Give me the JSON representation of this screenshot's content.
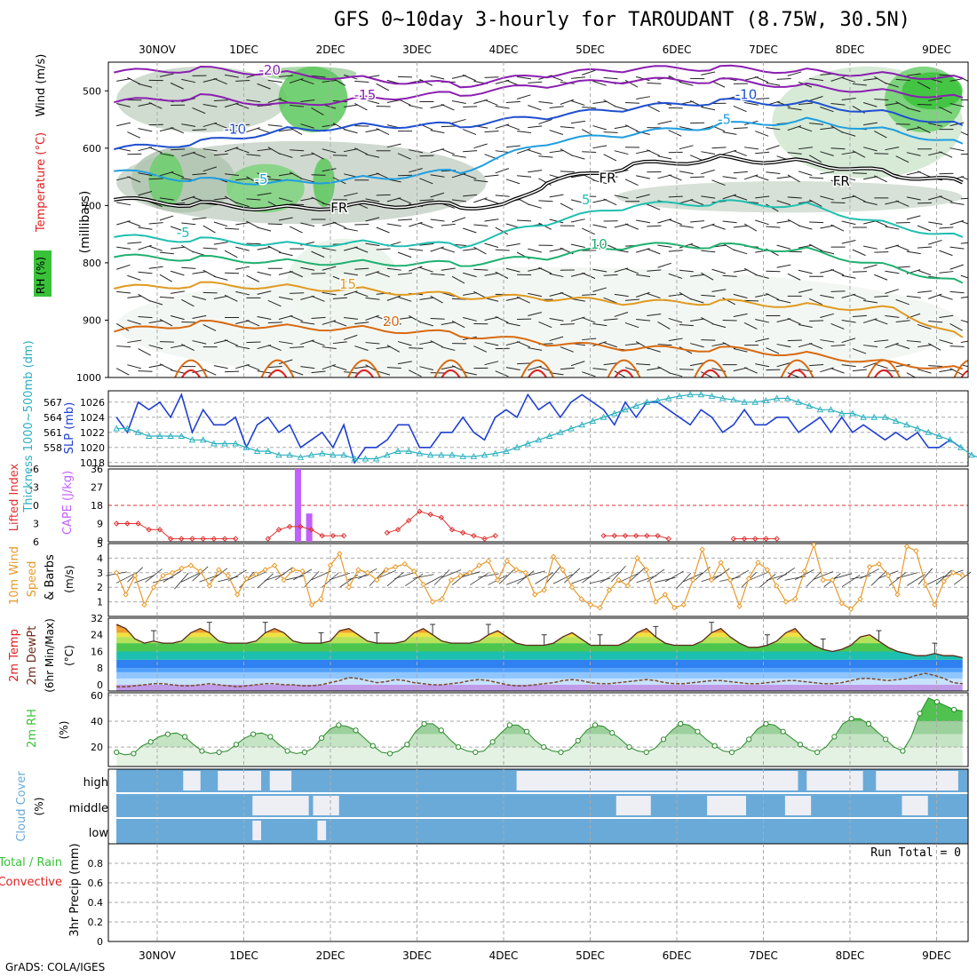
{
  "title": "GFS 0~10day 3-hourly for TAROUDANT (8.75W, 30.5N)",
  "credit": "GrADS: COLA/IGES",
  "dates": [
    "30NOV",
    "1DEC",
    "2DEC",
    "3DEC",
    "4DEC",
    "5DEC",
    "6DEC",
    "7DEC",
    "8DEC",
    "9DEC"
  ],
  "colors": {
    "temp_cold": "#8a1fb0",
    "temp_blue": "#1f4fd0",
    "temp_cyan": "#1f9ee0",
    "temp_teal": "#1fbfb0",
    "temp_green": "#1fb070",
    "temp_orange": "#e09a20",
    "temp_darkorange": "#d86a10",
    "temp_red": "#e02020",
    "rh_green": "#39c239",
    "slp": "#1f3fd0",
    "thickness": "#2ab0c0",
    "lifted": "#e03030",
    "cape": "#c060ff",
    "wind": "#e89a2a",
    "cloud": "#6aaad8",
    "cloud_light": "#eeeef5"
  },
  "chart_data": [
    {
      "panel": "upper-air",
      "type": "contour",
      "ylabel_left": "RH (%)",
      "ylabel_mid": "Temperature (°C)",
      "ylabel_right": "Wind (m/s)",
      "ylabel_units": "(millibars)",
      "yticks": [
        500,
        600,
        700,
        800,
        900,
        1000
      ],
      "ylim": [
        450,
        1000
      ],
      "xlim_days": [
        -0.47,
        9.3
      ],
      "isotherms": [
        {
          "label": "-20",
          "color_key": "temp_cold",
          "days": [
            -0.5,
            0.5,
            1.5,
            2.5,
            3.5,
            4.5,
            5.5,
            6.5,
            7.5,
            8.5,
            9.3
          ],
          "hpa": [
            468,
            462,
            470,
            480,
            490,
            472,
            462,
            460,
            466,
            472,
            478
          ]
        },
        {
          "label": "-15",
          "color_key": "temp_cold",
          "days": [
            -0.5,
            0.5,
            1.5,
            2.5,
            3.5,
            4.5,
            5.5,
            6.5,
            7.5,
            8.5,
            9.3
          ],
          "hpa": [
            520,
            510,
            525,
            512,
            505,
            490,
            482,
            482,
            492,
            502,
            512
          ]
        },
        {
          "label": "-10",
          "color_key": "temp_blue",
          "days": [
            -0.5,
            0.5,
            1.5,
            2.5,
            3.5,
            4.5,
            5.5,
            6.5,
            7.5,
            8.5,
            9.3
          ],
          "hpa": [
            602,
            590,
            568,
            560,
            560,
            545,
            530,
            518,
            522,
            540,
            560
          ]
        },
        {
          "label": "-5",
          "color_key": "temp_cyan",
          "days": [
            -0.5,
            0.5,
            1.5,
            2.5,
            3.5,
            4.5,
            5.5,
            6.5,
            7.5,
            8.5,
            9.3
          ],
          "hpa": [
            640,
            656,
            660,
            652,
            640,
            590,
            575,
            560,
            552,
            570,
            592
          ]
        },
        {
          "label": "FR",
          "color_key": "freezing",
          "days": [
            -0.5,
            0.5,
            1.5,
            2.5,
            3.5,
            4.0,
            4.5,
            5.5,
            6.5,
            7.5,
            8.5,
            9.3
          ],
          "hpa": [
            690,
            698,
            705,
            698,
            700,
            702,
            660,
            630,
            618,
            624,
            645,
            660
          ]
        },
        {
          "label": "5",
          "color_key": "temp_teal",
          "days": [
            -0.5,
            0.5,
            1.5,
            2.5,
            3.5,
            4.5,
            5.5,
            6.5,
            7.5,
            8.5,
            9.3
          ],
          "hpa": [
            755,
            760,
            768,
            765,
            770,
            730,
            700,
            695,
            700,
            735,
            755
          ]
        },
        {
          "label": "10",
          "color_key": "temp_green",
          "days": [
            -0.5,
            0.5,
            1.5,
            2.5,
            3.5,
            4.5,
            5.5,
            6.5,
            7.5,
            8.5,
            9.3
          ],
          "hpa": [
            790,
            792,
            798,
            800,
            802,
            790,
            770,
            770,
            778,
            808,
            835
          ]
        },
        {
          "label": "15",
          "color_key": "temp_orange",
          "days": [
            -0.5,
            0.5,
            1.5,
            2.5,
            3.5,
            4.5,
            5.5,
            6.5,
            7.5,
            8.5,
            9.3
          ],
          "hpa": [
            845,
            838,
            842,
            848,
            858,
            862,
            870,
            868,
            875,
            880,
            930
          ]
        },
        {
          "label": "20",
          "color_key": "temp_darkorange",
          "days": [
            -0.5,
            0.5,
            1.5,
            2.5,
            3.5,
            4.5,
            5.5,
            6.5,
            7.5,
            8.5,
            9.3
          ],
          "hpa": [
            920,
            905,
            912,
            915,
            925,
            940,
            950,
            950,
            960,
            975,
            985
          ]
        }
      ]
    },
    {
      "panel": "pressure",
      "type": "line",
      "ylabel_left": "Thickness 1000~500mb (dm)",
      "ylabel_right": "SLP (mb)",
      "yticks_left": [
        558,
        561,
        564,
        567
      ],
      "yticks_right": [
        1018,
        1020,
        1022,
        1024,
        1026
      ],
      "ylim": [
        1017.5,
        1027.5
      ],
      "series": [
        {
          "name": "SLP",
          "color_key": "slp",
          "values": [
            1024,
            1022,
            1026,
            1025,
            1026,
            1024,
            1027,
            1022,
            1025,
            1023,
            1023,
            1024,
            1020,
            1023,
            1024,
            1022,
            1023,
            1020,
            1021,
            1022,
            1020,
            1023,
            1018,
            1020,
            1020,
            1021,
            1023,
            1023,
            1020,
            1020,
            1022,
            1022,
            1024,
            1022,
            1021,
            1024,
            1025,
            1024,
            1027,
            1025,
            1026,
            1024,
            1026,
            1027,
            1026,
            1025,
            1023,
            1026,
            1024,
            1026,
            1026,
            1025,
            1024,
            1023,
            1025,
            1024,
            1022,
            1023,
            1025,
            1023,
            1023,
            1024,
            1024,
            1022,
            1023,
            1024,
            1022,
            1024,
            1022,
            1023,
            1022,
            1021,
            1022,
            1021,
            1022,
            1020,
            1020,
            1021,
            1020
          ]
        },
        {
          "name": "Thickness",
          "color_key": "thickness",
          "values": [
            1022.5,
            1022.5,
            1022,
            1021.5,
            1021.5,
            1021.5,
            1021.5,
            1021,
            1021,
            1020.5,
            1020.5,
            1020.5,
            1020,
            1019.5,
            1019.5,
            1019,
            1019,
            1018.7,
            1019,
            1019.2,
            1019,
            1019,
            1018.5,
            1018.5,
            1018.5,
            1019,
            1019.5,
            1019.5,
            1019.2,
            1019,
            1019,
            1019,
            1018.8,
            1018.8,
            1019,
            1019.2,
            1019.5,
            1020,
            1020.5,
            1021,
            1021.5,
            1022,
            1022.5,
            1023,
            1023.5,
            1024,
            1024.5,
            1025,
            1025.5,
            1026,
            1026.2,
            1026.5,
            1026.8,
            1027,
            1027,
            1026.8,
            1026.5,
            1026.3,
            1026,
            1026,
            1026.2,
            1026.5,
            1026.5,
            1026,
            1025.5,
            1025,
            1025,
            1024.5,
            1024.5,
            1024,
            1024,
            1024,
            1023.5,
            1023,
            1022.5,
            1022,
            1021.5,
            1021,
            1020,
            1019,
            1018.5,
            1018
          ]
        }
      ]
    },
    {
      "panel": "stability",
      "type": "bar+line",
      "ylabel_left": "Lifted Index",
      "ylabel_right": "CAPE (J/kg)",
      "yticks_left": [
        -6,
        -3,
        0,
        3,
        6
      ],
      "yticks_right": [
        9,
        18,
        27,
        36
      ],
      "li_ylim": [
        -6,
        6
      ],
      "lifted_index": [
        3,
        3,
        3,
        4,
        4,
        5.5,
        5.5,
        5.5,
        5.5,
        5.5,
        5.5,
        5.5,
        5.5,
        5.5,
        5.5,
        4,
        3.5,
        3.5,
        4,
        5,
        5,
        5,
        5,
        5.5,
        4.5,
        4.5,
        4,
        2.5,
        1,
        1.5,
        2,
        4,
        4.5,
        5,
        5.5,
        5,
        5,
        5,
        5,
        5,
        5,
        5,
        5,
        5,
        5,
        5,
        5,
        5,
        5,
        5,
        5,
        5.5,
        5.5,
        5.5,
        5.5,
        5.5,
        5.5,
        5.5,
        5.5,
        5.5,
        5.5,
        5.5,
        5.5,
        5.5,
        5.5,
        5.5,
        5.5,
        5.5,
        5.5,
        5.5,
        5.5,
        5.5,
        5.5,
        5.5,
        5.5,
        5.5,
        5.5,
        5.5,
        5.5
      ],
      "li_segments": [
        [
          0,
          11
        ],
        [
          14,
          21
        ],
        [
          25,
          35
        ],
        [
          45,
          51
        ],
        [
          57,
          61
        ]
      ],
      "cape": [
        {
          "day": 1.62,
          "value": 36
        },
        {
          "day": 1.75,
          "value": 14
        }
      ],
      "cape_ylim": [
        0,
        36
      ]
    },
    {
      "panel": "wind10m",
      "type": "line",
      "ylabel": "10m Wind Speed (m/s) & Barbs",
      "yticks": [
        1,
        2,
        3,
        4,
        5
      ],
      "ylim": [
        0,
        5
      ],
      "values": [
        3,
        1.5,
        2.8,
        0.8,
        2,
        2.8,
        3,
        3.3,
        3.5,
        3.1,
        2.1,
        3.2,
        2.8,
        1.5,
        2.6,
        2.9,
        3.2,
        3.5,
        2.5,
        3.2,
        3.1,
        0.8,
        1.2,
        3.5,
        4.3,
        2,
        3.2,
        3,
        2.5,
        3.2,
        3.4,
        3.6,
        3.1,
        2.2,
        1,
        1.2,
        2.5,
        2.8,
        3,
        3.5,
        3.8,
        2.5,
        3.8,
        3.2,
        3,
        1.5,
        1.8,
        4.1,
        3.2,
        2,
        1.2,
        0.8,
        0.6,
        1.8,
        2.5,
        2.1,
        4,
        3.2,
        1,
        1.5,
        0.6,
        0.8,
        2.5,
        4.6,
        2.5,
        3.7,
        2.5,
        0.7,
        2.6,
        3.7,
        3.2,
        2.1,
        1,
        1.2,
        3.1,
        4.9,
        2.5,
        2.5,
        0.9,
        0.5,
        1.2,
        3.4,
        3.6,
        2.8,
        1.5,
        4.8,
        4.5,
        2.2,
        0.8,
        2.4,
        3,
        2.8
      ]
    },
    {
      "panel": "temp2m",
      "type": "area+line",
      "ylabel": "2m Temp / 2m DewPt (6hr Min/Max) (°C)",
      "yticks": [
        0,
        8,
        16,
        24,
        32
      ],
      "ylim": [
        -3,
        32
      ],
      "temperature": [
        29,
        27,
        22,
        20,
        21,
        20,
        20,
        21,
        25,
        27,
        25,
        21,
        20,
        20,
        20,
        21,
        25,
        27,
        25,
        21,
        20,
        20,
        20,
        21,
        26,
        27,
        24,
        21,
        20,
        20,
        20,
        21,
        25,
        27,
        24,
        21,
        20,
        20,
        20,
        21,
        24,
        26,
        23,
        20,
        19,
        19,
        19,
        20,
        23,
        25,
        22,
        19,
        19,
        19,
        19,
        21,
        25,
        27,
        23,
        20,
        19,
        19,
        19,
        21,
        25,
        27,
        23,
        20,
        18,
        18,
        19,
        21,
        25,
        27,
        22,
        19,
        17,
        16,
        17,
        19,
        23,
        24,
        21,
        18,
        16,
        15,
        14,
        14,
        15,
        14,
        14,
        13
      ],
      "dewpoint": [
        -1,
        -1,
        -0.5,
        0,
        0.5,
        0.5,
        0,
        -0.5,
        -0.5,
        0,
        0.5,
        0,
        -0.5,
        -1,
        -0.5,
        0,
        0.5,
        0.5,
        0,
        0,
        -0.5,
        -0.5,
        0,
        1,
        2,
        3.5,
        3,
        2,
        1,
        1.5,
        2.5,
        2,
        1,
        0.5,
        0,
        0,
        0.5,
        1,
        2,
        2.5,
        2,
        1,
        0,
        -0.5,
        -0.5,
        0,
        0.5,
        1,
        2,
        2.5,
        2,
        1,
        0.5,
        0.5,
        1,
        1.5,
        2,
        2.5,
        2,
        1,
        0.5,
        0.5,
        1,
        1.5,
        2,
        2,
        1.5,
        1,
        0.5,
        0.5,
        1,
        1.5,
        2,
        2,
        1.5,
        1,
        0.5,
        0.5,
        1,
        2,
        3,
        3,
        2.5,
        2,
        2.5,
        3,
        4.5,
        5.5,
        4.5,
        3,
        1,
        0.5
      ]
    },
    {
      "panel": "rh2m",
      "type": "area+line",
      "ylabel": "2m RH (%)",
      "yticks": [
        20,
        40,
        60
      ],
      "ylim": [
        5,
        62
      ],
      "values": [
        16,
        14,
        15,
        21,
        24,
        28,
        30,
        31,
        28,
        22,
        17,
        15,
        16,
        17,
        22,
        27,
        30,
        31,
        28,
        22,
        17,
        15,
        16,
        19,
        27,
        34,
        37,
        36,
        33,
        27,
        21,
        16,
        15,
        17,
        22,
        32,
        38,
        38,
        33,
        26,
        20,
        17,
        16,
        17,
        24,
        31,
        37,
        37,
        32,
        25,
        20,
        17,
        16,
        18,
        25,
        33,
        37,
        36,
        31,
        26,
        20,
        17,
        16,
        19,
        26,
        33,
        38,
        37,
        32,
        26,
        21,
        17,
        16,
        19,
        26,
        34,
        38,
        37,
        32,
        27,
        22,
        18,
        16,
        20,
        28,
        38,
        42,
        42,
        38,
        32,
        26,
        20,
        17,
        28,
        46,
        58,
        55,
        52,
        49,
        48
      ]
    },
    {
      "panel": "cloud",
      "type": "heatmap",
      "ylabel": "Cloud Cover (%)",
      "levels": [
        "high",
        "middle",
        "low"
      ],
      "high_clear_intervals": [
        [
          0.3,
          0.5
        ],
        [
          0.7,
          1.2
        ],
        [
          1.3,
          1.55
        ],
        [
          4.15,
          7.4
        ],
        [
          7.5,
          8.15
        ],
        [
          8.3,
          9.25
        ]
      ],
      "middle_clear_intervals": [
        [
          1.1,
          1.75
        ],
        [
          1.8,
          2.1
        ],
        [
          5.3,
          5.7
        ],
        [
          6.35,
          6.8
        ],
        [
          7.25,
          7.55
        ],
        [
          8.6,
          8.9
        ]
      ],
      "low_clear_intervals": [
        [
          1.1,
          1.2
        ],
        [
          1.85,
          1.95
        ]
      ]
    },
    {
      "panel": "precip",
      "type": "bar",
      "ylabel": "3hr Precip (mm)",
      "legend_total": "Total / Rain",
      "legend_conv": "Convective",
      "yticks": [
        0,
        0.2,
        0.4,
        0.6,
        0.8
      ],
      "ylim": [
        0,
        1.0
      ],
      "annotation": "Run Total = 0",
      "values": []
    }
  ]
}
